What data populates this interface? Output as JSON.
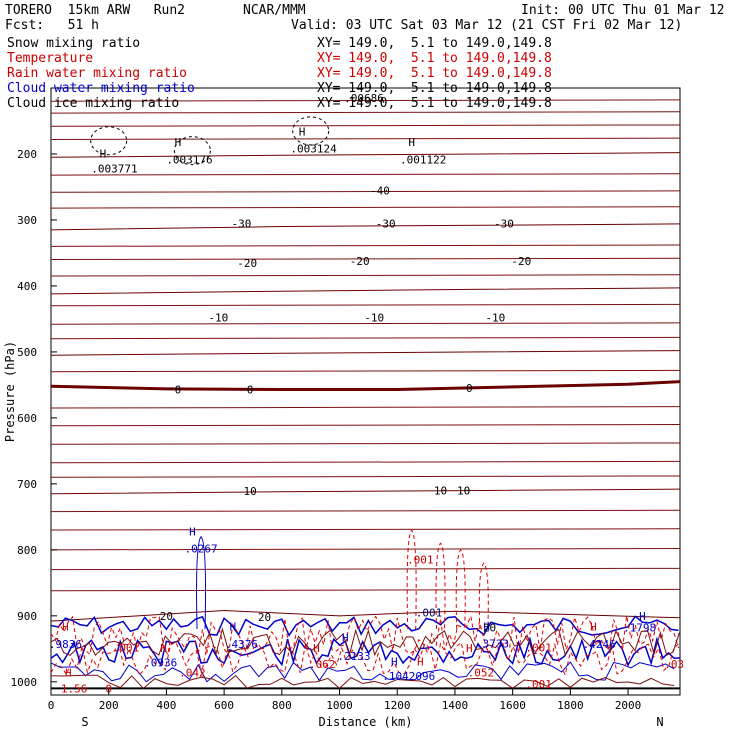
{
  "header": {
    "model": "TORERO  15km ARW   Run2",
    "org": "NCAR/MMM",
    "init": "Init: 00 UTC Thu 01 Mar 12",
    "fcst": "Fcst:   51 h",
    "valid": "Valid: 03 UTC Sat 03 Mar 12 (21 CST Fri 02 Mar 12)"
  },
  "fields": [
    {
      "name": "Snow mixing ratio",
      "xy": "",
      "color": "#000000"
    },
    {
      "name": "Temperature",
      "xy": "XY= 149.0,  5.1 to 149.0,149.8",
      "color": "#cc0000"
    },
    {
      "name": "Rain water mixing ratio",
      "xy": "XY= 149.0,  5.1 to 149.0,149.8",
      "color": "#cc0000"
    },
    {
      "name": "Cloud water mixing ratio",
      "xy": "XY= 149.0,  5.1 to 149.0,149.8",
      "color": "#0000cc"
    },
    {
      "name": "Cloud ice mixing ratio",
      "xy": "XY= 149.0,  5.1 to 149.0,149.8",
      "color": "#000000"
    }
  ],
  "snow_xy": "XY= 149.0,  5.1 to 149.0,149.8",
  "chart_data": {
    "type": "cross-section contour",
    "xlabel": "Distance (km)",
    "ylabel": "Pressure (hPa)",
    "xlim": [
      0,
      2180
    ],
    "ylim": [
      1020,
      100
    ],
    "x_ticks": [
      0,
      200,
      400,
      600,
      800,
      1000,
      1200,
      1400,
      1600,
      1800,
      2000
    ],
    "y_ticks": [
      200,
      300,
      400,
      500,
      600,
      700,
      800,
      900,
      1000
    ],
    "left_end_label": "S",
    "right_end_label": "N",
    "temperature_contours": [
      {
        "value": -40,
        "p": [
          [
            0,
            205
          ],
          [
            800,
            202
          ],
          [
            1500,
            200
          ],
          [
            2180,
            198
          ]
        ]
      },
      {
        "value": -30,
        "p": [
          [
            0,
            315
          ],
          [
            800,
            310
          ],
          [
            1500,
            308
          ],
          [
            2180,
            306
          ]
        ]
      },
      {
        "value": -20,
        "p": [
          [
            0,
            412
          ],
          [
            800,
            408
          ],
          [
            1500,
            405
          ],
          [
            2180,
            403
          ]
        ]
      },
      {
        "value": -10,
        "p": [
          [
            0,
            505
          ],
          [
            800,
            502
          ],
          [
            1500,
            500
          ],
          [
            2180,
            498
          ]
        ]
      },
      {
        "value": 0,
        "p": [
          [
            0,
            552
          ],
          [
            400,
            556
          ],
          [
            800,
            557
          ],
          [
            1200,
            557
          ],
          [
            1600,
            553
          ],
          [
            2000,
            549
          ],
          [
            2180,
            545
          ]
        ]
      },
      {
        "value": 10,
        "p": [
          [
            0,
            715
          ],
          [
            800,
            712
          ],
          [
            1500,
            710
          ],
          [
            2180,
            708
          ]
        ]
      },
      {
        "value": 20,
        "p": [
          [
            0,
            908
          ],
          [
            300,
            900
          ],
          [
            600,
            892
          ],
          [
            1000,
            900
          ],
          [
            1400,
            893
          ],
          [
            1800,
            898
          ],
          [
            2180,
            903
          ]
        ]
      }
    ],
    "contour_labels": [
      {
        "text": "-40",
        "x": 1140,
        "p": 255,
        "color": "#000000"
      },
      {
        "text": "-30",
        "x": 660,
        "p": 305,
        "color": "#000000"
      },
      {
        "text": "-30",
        "x": 1160,
        "p": 305,
        "color": "#000000"
      },
      {
        "text": "-30",
        "x": 1570,
        "p": 305,
        "color": "#000000"
      },
      {
        "text": "-20",
        "x": 680,
        "p": 365,
        "color": "#000000"
      },
      {
        "text": "-20",
        "x": 1070,
        "p": 362,
        "color": "#000000"
      },
      {
        "text": "-20",
        "x": 1630,
        "p": 362,
        "color": "#000000"
      },
      {
        "text": "-10",
        "x": 580,
        "p": 448,
        "color": "#000000"
      },
      {
        "text": "-10",
        "x": 1120,
        "p": 448,
        "color": "#000000"
      },
      {
        "text": "-10",
        "x": 1540,
        "p": 448,
        "color": "#000000"
      },
      {
        "text": "0",
        "x": 440,
        "p": 557,
        "color": "#000000"
      },
      {
        "text": "0",
        "x": 690,
        "p": 557,
        "color": "#000000"
      },
      {
        "text": "0",
        "x": 1450,
        "p": 555,
        "color": "#000000"
      },
      {
        "text": "10",
        "x": 690,
        "p": 711,
        "color": "#000000"
      },
      {
        "text": "10",
        "x": 1350,
        "p": 710,
        "color": "#000000"
      },
      {
        "text": "10",
        "x": 1430,
        "p": 710,
        "color": "#000000"
      },
      {
        "text": "20",
        "x": 400,
        "p": 900,
        "color": "#000000"
      },
      {
        "text": "20",
        "x": 740,
        "p": 902,
        "color": "#000000"
      },
      {
        "text": "20",
        "x": 1520,
        "p": 918,
        "color": "#000000"
      },
      {
        "text": ".001",
        "x": 1280,
        "p": 815,
        "color": "#cc0000"
      },
      {
        "text": ".001",
        "x": 1310,
        "p": 895,
        "color": "#000066"
      },
      {
        "text": ".0267",
        "x": 520,
        "p": 798,
        "color": "#0000cc"
      },
      {
        "text": ".003771",
        "x": 220,
        "p": 222,
        "color": "#000000"
      },
      {
        "text": ".003176",
        "x": 480,
        "p": 208,
        "color": "#000000"
      },
      {
        "text": ".003124",
        "x": 910,
        "p": 192,
        "color": "#000000"
      },
      {
        "text": ".001122",
        "x": 1290,
        "p": 208,
        "color": "#000000"
      },
      {
        "text": ".00686",
        "x": 1085,
        "p": 115,
        "color": "#000000"
      },
      {
        "text": ".0936",
        "x": 380,
        "p": 971,
        "color": "#0000cc"
      },
      {
        "text": ".2133",
        "x": 1050,
        "p": 961,
        "color": "#0000cc"
      },
      {
        "text": ".3733",
        "x": 1530,
        "p": 942,
        "color": "#0000cc"
      },
      {
        "text": ".1798",
        "x": 2040,
        "p": 918,
        "color": "#0000cc"
      },
      {
        "text": ".4376",
        "x": 660,
        "p": 943,
        "color": "#0000cc"
      },
      {
        "text": ".9836",
        "x": 50,
        "p": 943,
        "color": "#0000cc"
      },
      {
        "text": ".1042096",
        "x": 1240,
        "p": 991,
        "color": "#0000cc"
      },
      {
        "text": ".4246",
        "x": 1900,
        "p": 943,
        "color": "#0000cc"
      },
      {
        "text": ".001",
        "x": 260,
        "p": 948,
        "color": "#cc0000"
      },
      {
        "text": ".062",
        "x": 940,
        "p": 973,
        "color": "#cc0000"
      },
      {
        "text": ".042",
        "x": 490,
        "p": 986,
        "color": "#cc0000"
      },
      {
        "text": ".052",
        "x": 1490,
        "p": 986,
        "color": "#cc0000"
      },
      {
        "text": ".001",
        "x": 1690,
        "p": 1003,
        "color": "#cc0000"
      },
      {
        "text": ".001",
        "x": 1690,
        "p": 948,
        "color": "#cc0000"
      },
      {
        "text": "1.56",
        "x": 80,
        "p": 1010,
        "color": "#cc0000"
      },
      {
        "text": "0",
        "x": 200,
        "p": 1010,
        "color": "#cc0000"
      },
      {
        "text": ".03",
        "x": 2160,
        "p": 973,
        "color": "#cc0000"
      }
    ],
    "h_markers": [
      {
        "x": 180,
        "p": 205,
        "color": "#000000"
      },
      {
        "x": 440,
        "p": 188,
        "color": "#000000"
      },
      {
        "x": 870,
        "p": 172,
        "color": "#000000"
      },
      {
        "x": 1250,
        "p": 188,
        "color": "#000000"
      },
      {
        "x": 490,
        "p": 778,
        "color": "#0000cc"
      },
      {
        "x": 50,
        "p": 922,
        "color": "#cc0000"
      },
      {
        "x": 390,
        "p": 955,
        "color": "#cc0000"
      },
      {
        "x": 630,
        "p": 922,
        "color": "#0000cc"
      },
      {
        "x": 920,
        "p": 955,
        "color": "#cc0000"
      },
      {
        "x": 1020,
        "p": 939,
        "color": "#0000cc"
      },
      {
        "x": 1190,
        "p": 975,
        "color": "#0000cc"
      },
      {
        "x": 1280,
        "p": 975,
        "color": "#cc0000"
      },
      {
        "x": 1450,
        "p": 955,
        "color": "#cc0000"
      },
      {
        "x": 1510,
        "p": 922,
        "color": "#0000cc"
      },
      {
        "x": 1880,
        "p": 922,
        "color": "#cc0000"
      },
      {
        "x": 2050,
        "p": 906,
        "color": "#0000cc"
      },
      {
        "x": 60,
        "p": 992,
        "color": "#cc0000"
      }
    ]
  }
}
